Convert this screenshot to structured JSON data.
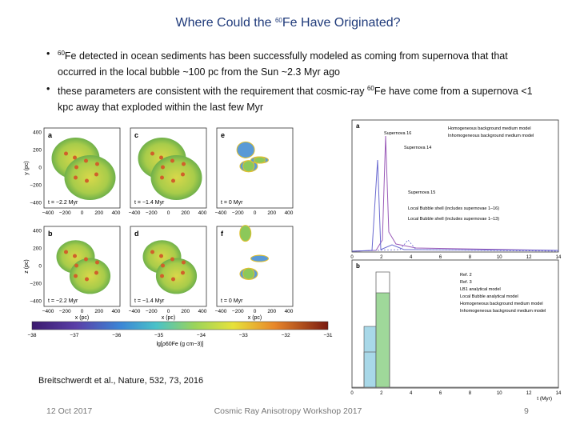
{
  "title": {
    "pre": "Where Could the ",
    "sup": "60",
    "post": "Fe Have Originated?"
  },
  "bullets": [
    {
      "pre": "",
      "sup": "60",
      "post": "Fe detected in ocean sediments has been successfully modeled as coming from supernova that that occurred in the local bubble ~100 pc from the Sun ~2.3 Myr ago"
    },
    {
      "pre": "these parameters are consistent with the requirement that cosmic-ray ",
      "sup": "60",
      "post": "Fe have come from a supernova <1 kpc away that exploded within the last few Myr"
    }
  ],
  "figure": {
    "panels": [
      {
        "label": "a",
        "time": "t = −2.2 Myr"
      },
      {
        "label": "c",
        "time": "t = −1.4 Myr"
      },
      {
        "label": "e",
        "time": "t = 0 Myr"
      },
      {
        "label": "b",
        "time": "t = −2.2 Myr"
      },
      {
        "label": "d",
        "time": "t = −1.4 Myr"
      },
      {
        "label": "f",
        "time": "t = 0 Myr"
      }
    ],
    "y_ticks": [
      "400",
      "200",
      "0",
      "−200",
      "−400"
    ],
    "x_ticks": [
      "−400",
      "−200",
      "0",
      "200",
      "400"
    ],
    "x_label": "x (pc)",
    "y_label": "y (pc)",
    "z_label": "z (pc)",
    "colorbar_ticks": [
      "−38",
      "−37",
      "−36",
      "−35",
      "−34",
      "−33",
      "−32",
      "−31"
    ],
    "colorbar_label": "lg[ρ60Fe (g cm−3)]",
    "right_top": {
      "label": "a",
      "legend": [
        "Homogeneous background medium model",
        "Inhomogeneous background medium model"
      ],
      "annotations": [
        "Supernova 16",
        "Supernova 14",
        "Supernova 15",
        "Local Bubble shell (includes supernovae 1–16)",
        "Local Bubble shell (includes supernovae 1–13)"
      ]
    },
    "right_bottom": {
      "label": "b",
      "legend": [
        "Ref. 2",
        "Ref. 3",
        "LB1 analytical model",
        "Local Bubble analytical model",
        "Homogeneous background medium model",
        "Inhomogeneous background medium model"
      ]
    },
    "t_ticks": [
      "0",
      "2",
      "4",
      "6",
      "8",
      "10",
      "12",
      "14"
    ],
    "t_label": "t (Myr)"
  },
  "citation": "Breitschwerdt et al., Nature, 532, 73, 2016",
  "footer": {
    "date": "12 Oct 2017",
    "event": "Cosmic Ray Anisotropy Workshop 2017",
    "page": "9"
  }
}
